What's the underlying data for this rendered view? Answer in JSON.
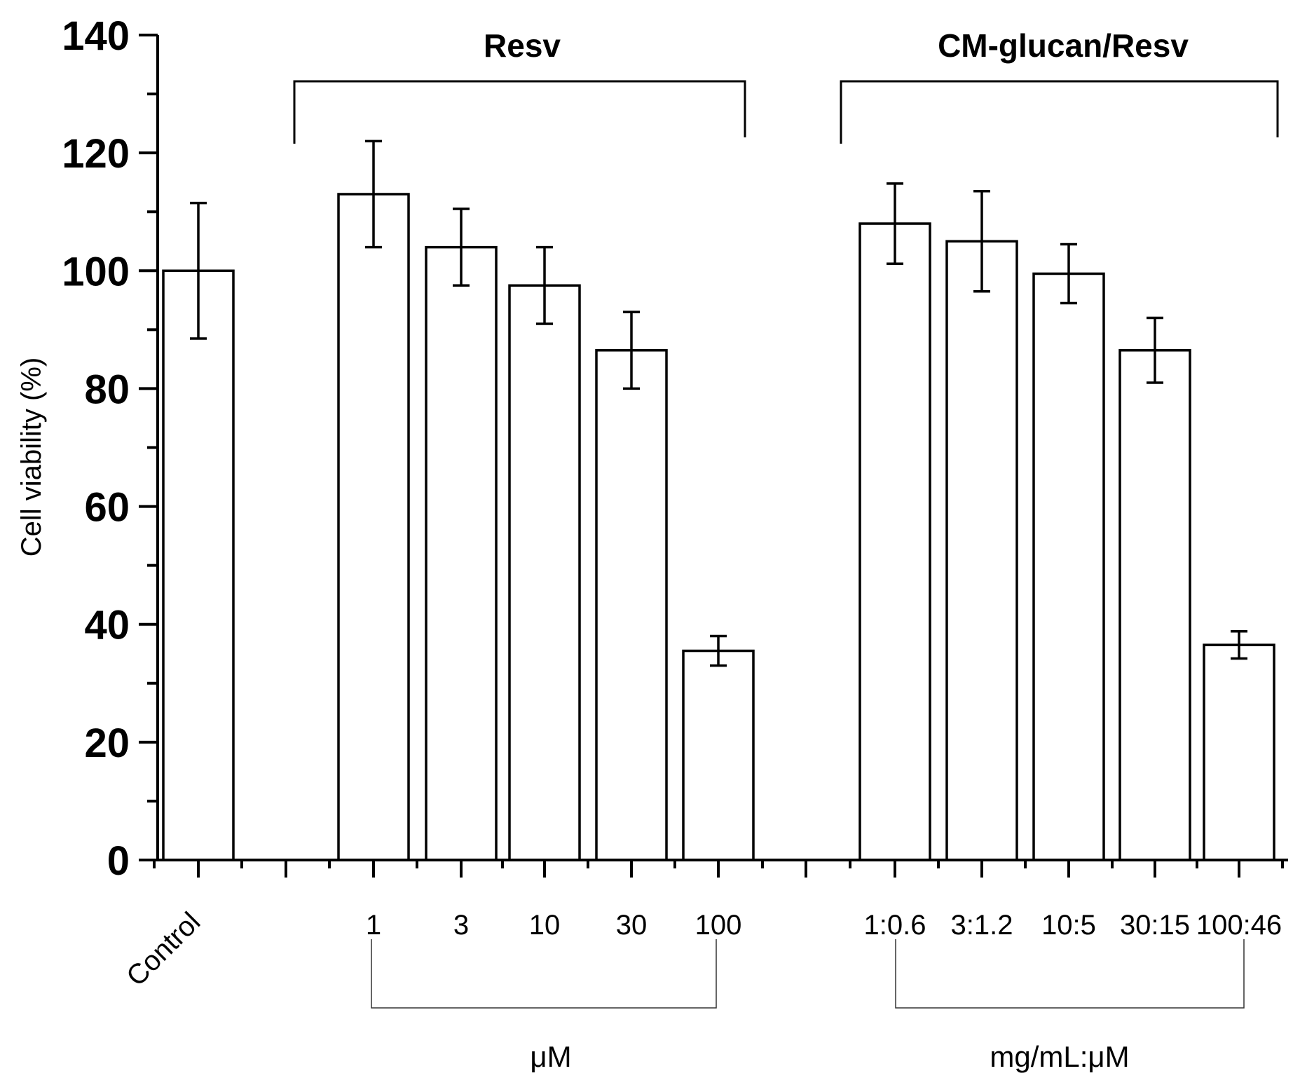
{
  "chart_data": {
    "type": "bar",
    "title": "",
    "xlabel": "",
    "ylabel": "Cell viability (%)",
    "ylim": [
      0,
      140
    ],
    "yticks": [
      0,
      20,
      40,
      60,
      80,
      100,
      120,
      140
    ],
    "grid": false,
    "categories": [
      "Control",
      "1",
      "3",
      "10",
      "30",
      "100",
      "1:0.6",
      "3:1.2",
      "10:5",
      "30:15",
      "100:46"
    ],
    "values": [
      100,
      113,
      104,
      97.5,
      86.5,
      35.5,
      108,
      105,
      99.5,
      86.5,
      36.5
    ],
    "errors": [
      11.5,
      9,
      6.5,
      6.5,
      6.5,
      2.5,
      6.8,
      8.5,
      5,
      5.5,
      2.3
    ],
    "groups": [
      {
        "title": "Resv",
        "unit": "μM",
        "categories": [
          "1",
          "3",
          "10",
          "30",
          "100"
        ]
      },
      {
        "title": "CM-glucan/Resv",
        "unit": "mg/mL:μM",
        "categories": [
          "1:0.6",
          "3:1.2",
          "10:5",
          "30:15",
          "100:46"
        ]
      }
    ]
  }
}
